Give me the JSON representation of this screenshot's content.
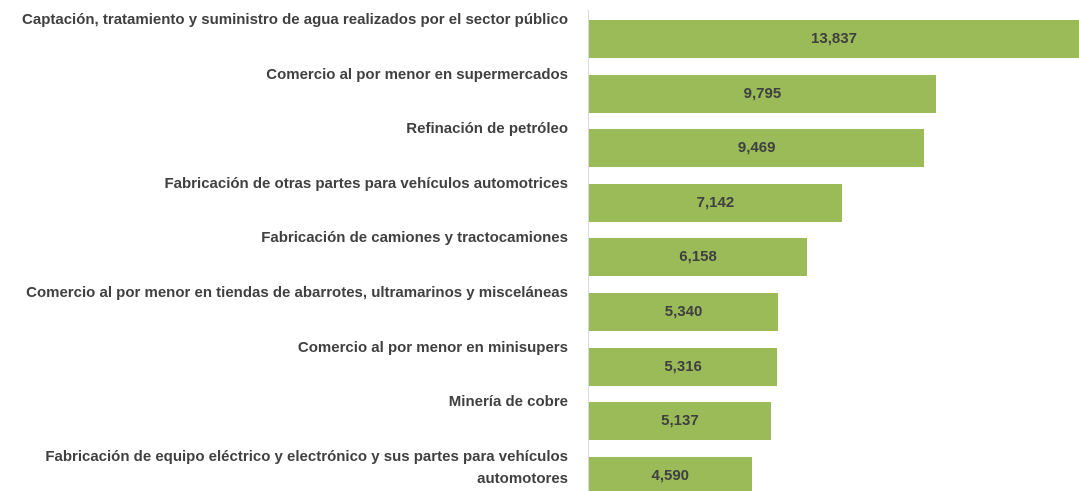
{
  "chart_data": {
    "type": "bar",
    "orientation": "horizontal",
    "categories": [
      "Captación, tratamiento y suministro de agua realizados por el sector público",
      "Comercio al por menor en supermercados",
      "Refinación de petróleo",
      "Fabricación de otras partes para vehículos automotrices",
      "Fabricación de camiones y tractocamiones",
      "Comercio al por menor en tiendas de abarrotes, ultramarinos y misceláneas",
      "Comercio al por menor en minisupers",
      "Minería de cobre",
      "Fabricación de equipo eléctrico y electrónico y sus partes para vehículos automotores"
    ],
    "values": [
      13837,
      9795,
      9469,
      7142,
      6158,
      5340,
      5316,
      5137,
      4590
    ],
    "value_labels": [
      "13,837",
      "9,795",
      "9,469",
      "7,142",
      "6,158",
      "5,340",
      "5,316",
      "5,137",
      "4,590"
    ],
    "color": "#9bbb59"
  }
}
